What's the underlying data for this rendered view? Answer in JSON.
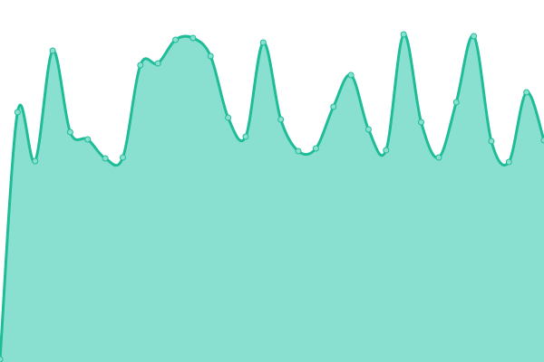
{
  "chart_data": {
    "type": "area",
    "title": "",
    "xlabel": "",
    "ylabel": "",
    "x": [
      0,
      1,
      2,
      3,
      4,
      5,
      6,
      7,
      8,
      9,
      10,
      11,
      12,
      13,
      14,
      15,
      16,
      17,
      18,
      19,
      20,
      21,
      22,
      23,
      24,
      25,
      26,
      27,
      28,
      29,
      30,
      31
    ],
    "values": [
      3,
      276,
      222,
      344,
      254,
      246,
      225,
      226,
      328,
      330,
      356,
      358,
      338,
      270,
      249,
      353,
      268,
      233,
      236,
      282,
      317,
      257,
      234,
      362,
      265,
      226,
      287,
      360,
      244,
      221,
      298,
      245
    ],
    "ylim": [
      0,
      400
    ],
    "grid": false,
    "axes_visible": false,
    "smooth": true,
    "colors": {
      "line": "#1fbc98",
      "fill": "#8ae0d0",
      "marker_fill": "#8ae0d0",
      "marker_stroke": "#1fbc98"
    }
  }
}
